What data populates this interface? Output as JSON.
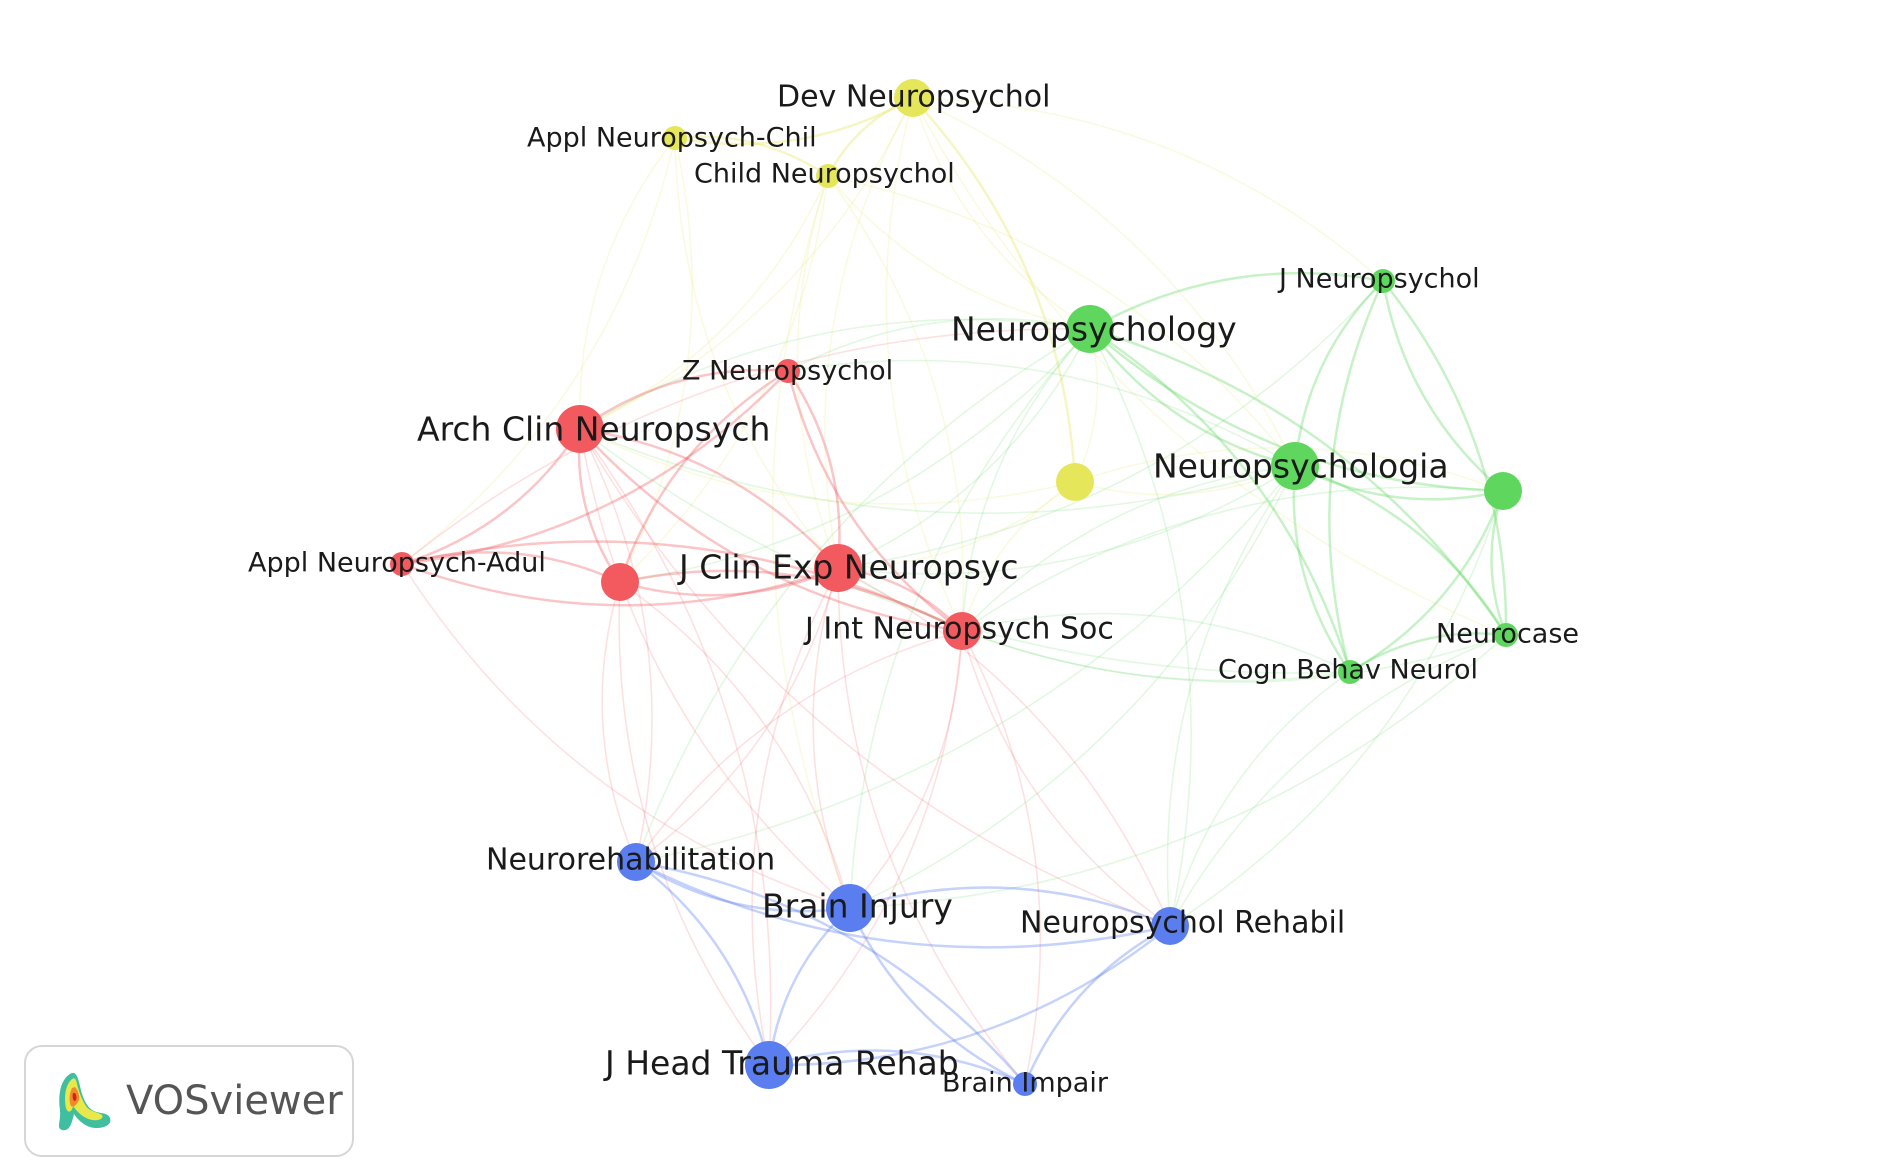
{
  "palette": {
    "red": "#f25a5f",
    "green": "#5fd75f",
    "blue": "#5a7ef0",
    "yellow": "#e6e65a"
  },
  "nodes": [
    {
      "id": "dev-neuropsychol",
      "label": "Dev Neuropsychol",
      "cluster": "yellow",
      "size": "medium"
    },
    {
      "id": "appl-neuropsych-chil",
      "label": "Appl Neuropsych-Chil",
      "cluster": "yellow",
      "size": "small"
    },
    {
      "id": "child-neuropsychol",
      "label": "Child Neuropsychol",
      "cluster": "yellow",
      "size": "small"
    },
    {
      "id": "unlabeled-yellow",
      "label": "",
      "cluster": "yellow",
      "size": "medium"
    },
    {
      "id": "j-neuropsychol",
      "label": "J Neuropsychol",
      "cluster": "green",
      "size": "small"
    },
    {
      "id": "neuropsychology",
      "label": "Neuropsychology",
      "cluster": "green",
      "size": "large"
    },
    {
      "id": "neuropsychologia",
      "label": "Neuropsychologia",
      "cluster": "green",
      "size": "large"
    },
    {
      "id": "unlabeled-green",
      "label": "",
      "cluster": "green",
      "size": "medium"
    },
    {
      "id": "neurocase",
      "label": "Neurocase",
      "cluster": "green",
      "size": "small"
    },
    {
      "id": "cogn-behav-neurol",
      "label": "Cogn Behav Neurol",
      "cluster": "green",
      "size": "small"
    },
    {
      "id": "z-neuropsychol",
      "label": "Z Neuropsychol",
      "cluster": "red",
      "size": "small"
    },
    {
      "id": "arch-clin-neuropsych",
      "label": "Arch Clin Neuropsych",
      "cluster": "red",
      "size": "large"
    },
    {
      "id": "appl-neuropsych-adul",
      "label": "Appl Neuropsych-Adul",
      "cluster": "red",
      "size": "small"
    },
    {
      "id": "unlabeled-red",
      "label": "",
      "cluster": "red",
      "size": "medium"
    },
    {
      "id": "j-clin-exp-neuropsyc",
      "label": "J Clin Exp Neuropsyc",
      "cluster": "red",
      "size": "large"
    },
    {
      "id": "j-int-neuropsych-soc",
      "label": "J Int Neuropsych Soc",
      "cluster": "red",
      "size": "medium"
    },
    {
      "id": "neurorehabilitation",
      "label": "Neurorehabilitation",
      "cluster": "blue",
      "size": "medium"
    },
    {
      "id": "brain-injury",
      "label": "Brain Injury",
      "cluster": "blue",
      "size": "large"
    },
    {
      "id": "neuropsychol-rehabil",
      "label": "Neuropsychol Rehabil",
      "cluster": "blue",
      "size": "medium"
    },
    {
      "id": "j-head-trauma-rehab",
      "label": "J Head Trauma Rehab",
      "cluster": "blue",
      "size": "large"
    },
    {
      "id": "brain-impair",
      "label": "Brain Impair",
      "cluster": "blue",
      "size": "small"
    }
  ],
  "links": [
    [
      "dev-neuropsychol",
      "child-neuropsychol"
    ],
    [
      "dev-neuropsychol",
      "appl-neuropsych-chil"
    ],
    [
      "dev-neuropsychol",
      "neuropsychology"
    ],
    [
      "dev-neuropsychol",
      "neuropsychologia"
    ],
    [
      "dev-neuropsychol",
      "j-clin-exp-neuropsyc"
    ],
    [
      "dev-neuropsychol",
      "arch-clin-neuropsych"
    ],
    [
      "dev-neuropsychol",
      "j-int-neuropsych-soc"
    ],
    [
      "dev-neuropsychol",
      "unlabeled-yellow"
    ],
    [
      "dev-neuropsychol",
      "neurocase"
    ],
    [
      "dev-neuropsychol",
      "j-neuropsychol"
    ],
    [
      "child-neuropsychol",
      "appl-neuropsych-chil"
    ],
    [
      "child-neuropsychol",
      "arch-clin-neuropsych"
    ],
    [
      "child-neuropsychol",
      "j-clin-exp-neuropsyc"
    ],
    [
      "child-neuropsychol",
      "j-int-neuropsych-soc"
    ],
    [
      "child-neuropsychol",
      "neuropsychology"
    ],
    [
      "child-neuropsychol",
      "neuropsychologia"
    ],
    [
      "child-neuropsychol",
      "brain-injury"
    ],
    [
      "child-neuropsychol",
      "unlabeled-red"
    ],
    [
      "appl-neuropsych-chil",
      "arch-clin-neuropsych"
    ],
    [
      "appl-neuropsych-chil",
      "unlabeled-red"
    ],
    [
      "appl-neuropsych-chil",
      "j-clin-exp-neuropsyc"
    ],
    [
      "appl-neuropsych-chil",
      "appl-neuropsych-adul"
    ],
    [
      "unlabeled-yellow",
      "neuropsychologia"
    ],
    [
      "unlabeled-yellow",
      "j-clin-exp-neuropsyc"
    ],
    [
      "unlabeled-yellow",
      "neuropsychology"
    ],
    [
      "unlabeled-yellow",
      "arch-clin-neuropsych"
    ],
    [
      "unlabeled-yellow",
      "j-int-neuropsych-soc"
    ],
    [
      "unlabeled-yellow",
      "unlabeled-green"
    ],
    [
      "neuropsychology",
      "neuropsychologia"
    ],
    [
      "neuropsychology",
      "j-neuropsychol"
    ],
    [
      "neuropsychology",
      "arch-clin-neuropsych"
    ],
    [
      "neuropsychology",
      "j-clin-exp-neuropsyc"
    ],
    [
      "neuropsychology",
      "j-int-neuropsych-soc"
    ],
    [
      "neuropsychology",
      "neurocase"
    ],
    [
      "neuropsychology",
      "unlabeled-green"
    ],
    [
      "neuropsychology",
      "cogn-behav-neurol"
    ],
    [
      "neuropsychology",
      "brain-injury"
    ],
    [
      "neuropsychology",
      "neuropsychol-rehabil"
    ],
    [
      "neuropsychology",
      "z-neuropsychol"
    ],
    [
      "neuropsychology",
      "unlabeled-red"
    ],
    [
      "neuropsychology",
      "neurorehabilitation"
    ],
    [
      "neuropsychologia",
      "j-neuropsychol"
    ],
    [
      "neuropsychologia",
      "unlabeled-green"
    ],
    [
      "neuropsychologia",
      "neurocase"
    ],
    [
      "neuropsychologia",
      "cogn-behav-neurol"
    ],
    [
      "neuropsychologia",
      "j-clin-exp-neuropsyc"
    ],
    [
      "neuropsychologia",
      "j-int-neuropsych-soc"
    ],
    [
      "neuropsychologia",
      "arch-clin-neuropsych"
    ],
    [
      "neuropsychologia",
      "neuropsychol-rehabil"
    ],
    [
      "neuropsychologia",
      "brain-injury"
    ],
    [
      "neuropsychologia",
      "z-neuropsychol"
    ],
    [
      "neuropsychologia",
      "neurorehabilitation"
    ],
    [
      "j-neuropsychol",
      "unlabeled-green"
    ],
    [
      "j-neuropsychol",
      "neurocase"
    ],
    [
      "j-neuropsychol",
      "cogn-behav-neurol"
    ],
    [
      "j-neuropsychol",
      "j-clin-exp-neuropsyc"
    ],
    [
      "unlabeled-green",
      "neurocase"
    ],
    [
      "unlabeled-green",
      "cogn-behav-neurol"
    ],
    [
      "unlabeled-green",
      "j-int-neuropsych-soc"
    ],
    [
      "unlabeled-green",
      "neuropsychol-rehabil"
    ],
    [
      "neurocase",
      "cogn-behav-neurol"
    ],
    [
      "neurocase",
      "j-int-neuropsych-soc"
    ],
    [
      "neurocase",
      "neuropsychol-rehabil"
    ],
    [
      "neurocase",
      "brain-injury"
    ],
    [
      "cogn-behav-neurol",
      "j-int-neuropsych-soc"
    ],
    [
      "cogn-behav-neurol",
      "j-clin-exp-neuropsyc"
    ],
    [
      "cogn-behav-neurol",
      "neuropsychol-rehabil"
    ],
    [
      "cogn-behav-neurol",
      "arch-clin-neuropsych"
    ],
    [
      "z-neuropsychol",
      "arch-clin-neuropsych"
    ],
    [
      "z-neuropsychol",
      "j-clin-exp-neuropsyc"
    ],
    [
      "z-neuropsychol",
      "j-int-neuropsych-soc"
    ],
    [
      "z-neuropsychol",
      "appl-neuropsych-adul"
    ],
    [
      "z-neuropsychol",
      "unlabeled-red"
    ],
    [
      "arch-clin-neuropsych",
      "appl-neuropsych-adul"
    ],
    [
      "arch-clin-neuropsych",
      "unlabeled-red"
    ],
    [
      "arch-clin-neuropsych",
      "j-clin-exp-neuropsyc"
    ],
    [
      "arch-clin-neuropsych",
      "j-int-neuropsych-soc"
    ],
    [
      "arch-clin-neuropsych",
      "neurorehabilitation"
    ],
    [
      "arch-clin-neuropsych",
      "brain-injury"
    ],
    [
      "arch-clin-neuropsych",
      "j-head-trauma-rehab"
    ],
    [
      "arch-clin-neuropsych",
      "neuropsychol-rehabil"
    ],
    [
      "appl-neuropsych-adul",
      "unlabeled-red"
    ],
    [
      "appl-neuropsych-adul",
      "j-clin-exp-neuropsyc"
    ],
    [
      "appl-neuropsych-adul",
      "j-int-neuropsych-soc"
    ],
    [
      "appl-neuropsych-adul",
      "brain-injury"
    ],
    [
      "appl-neuropsych-adul",
      "neuropsychology"
    ],
    [
      "unlabeled-red",
      "j-clin-exp-neuropsyc"
    ],
    [
      "unlabeled-red",
      "j-int-neuropsych-soc"
    ],
    [
      "unlabeled-red",
      "neurorehabilitation"
    ],
    [
      "unlabeled-red",
      "brain-injury"
    ],
    [
      "unlabeled-red",
      "j-head-trauma-rehab"
    ],
    [
      "j-clin-exp-neuropsyc",
      "j-int-neuropsych-soc"
    ],
    [
      "j-clin-exp-neuropsyc",
      "brain-injury"
    ],
    [
      "j-clin-exp-neuropsyc",
      "neurorehabilitation"
    ],
    [
      "j-clin-exp-neuropsyc",
      "j-head-trauma-rehab"
    ],
    [
      "j-clin-exp-neuropsyc",
      "neuropsychol-rehabil"
    ],
    [
      "j-clin-exp-neuropsyc",
      "brain-impair"
    ],
    [
      "j-int-neuropsych-soc",
      "brain-injury"
    ],
    [
      "j-int-neuropsych-soc",
      "neuropsychol-rehabil"
    ],
    [
      "j-int-neuropsych-soc",
      "j-head-trauma-rehab"
    ],
    [
      "j-int-neuropsych-soc",
      "neurorehabilitation"
    ],
    [
      "j-int-neuropsych-soc",
      "brain-impair"
    ],
    [
      "neurorehabilitation",
      "brain-injury"
    ],
    [
      "neurorehabilitation",
      "j-head-trauma-rehab"
    ],
    [
      "neurorehabilitation",
      "neuropsychol-rehabil"
    ],
    [
      "neurorehabilitation",
      "brain-impair"
    ],
    [
      "brain-injury",
      "j-head-trauma-rehab"
    ],
    [
      "brain-injury",
      "neuropsychol-rehabil"
    ],
    [
      "brain-injury",
      "brain-impair"
    ],
    [
      "neuropsychol-rehabil",
      "j-head-trauma-rehab"
    ],
    [
      "neuropsychol-rehabil",
      "brain-impair"
    ],
    [
      "j-head-trauma-rehab",
      "brain-impair"
    ]
  ],
  "badge": {
    "text": "VOSviewer"
  }
}
